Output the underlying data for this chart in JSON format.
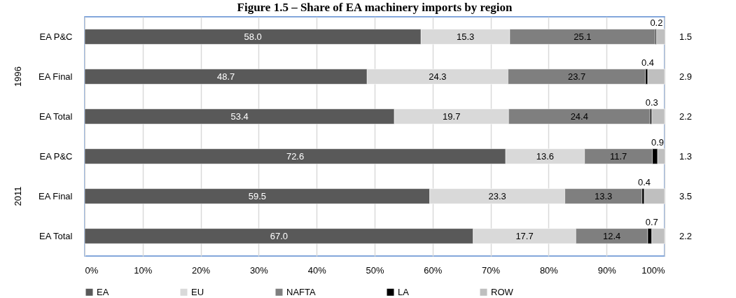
{
  "chart_data": {
    "type": "bar",
    "orientation": "horizontal",
    "stacked": true,
    "title": "Figure 1.5 – Share of EA machinery imports by region",
    "categories": [
      "EA P&C",
      "EA Final",
      "EA Total",
      "EA P&C",
      "EA Final",
      "EA Total"
    ],
    "annotations": [
      "1996",
      "2011"
    ],
    "series": [
      {
        "name": "EA",
        "color": "#595959",
        "values": [
          58.0,
          48.7,
          53.4,
          72.6,
          59.5,
          67.0
        ],
        "value_labels": [
          "58.0",
          "48.7",
          "53.4",
          "72.6",
          "59.5",
          "67.0"
        ]
      },
      {
        "name": "EU",
        "color": "#d9d9d9",
        "values": [
          15.3,
          24.3,
          19.7,
          13.6,
          23.3,
          17.7
        ],
        "value_labels": [
          "15.3",
          "24.3",
          "19.7",
          "13.6",
          "23.3",
          "17.7"
        ]
      },
      {
        "name": "NAFTA",
        "color": "#7f7f7f",
        "values": [
          25.1,
          23.7,
          24.4,
          11.7,
          13.3,
          12.4
        ],
        "value_labels": [
          "25.1",
          "23.7",
          "24.4",
          "11.7",
          "13.3",
          "12.4"
        ]
      },
      {
        "name": "LA",
        "color": "#000000",
        "values": [
          0.2,
          0.4,
          0.3,
          0.9,
          0.4,
          0.7
        ],
        "value_labels": [
          "0.2",
          "0.4",
          "0.3",
          "0.9",
          "0.4",
          "0.7"
        ]
      },
      {
        "name": "ROW",
        "color": "#bfbfbf",
        "values": [
          1.5,
          2.9,
          2.2,
          1.3,
          3.5,
          2.2
        ],
        "value_labels": [
          "1.5",
          "2.9",
          "2.2",
          "1.3",
          "3.5",
          "2.2"
        ]
      }
    ],
    "xlim": [
      0,
      100
    ],
    "xticks": [
      {
        "value": 0,
        "label": "0%"
      },
      {
        "value": 10,
        "label": "10%"
      },
      {
        "value": 20,
        "label": "20%"
      },
      {
        "value": 30,
        "label": "30%"
      },
      {
        "value": 40,
        "label": "40%"
      },
      {
        "value": 50,
        "label": "50%"
      },
      {
        "value": 60,
        "label": "60%"
      },
      {
        "value": 70,
        "label": "70%"
      },
      {
        "value": 80,
        "label": "80%"
      },
      {
        "value": 90,
        "label": "90%"
      },
      {
        "value": 100,
        "label": "100%"
      }
    ],
    "grid": "x",
    "legend": "bottom"
  }
}
